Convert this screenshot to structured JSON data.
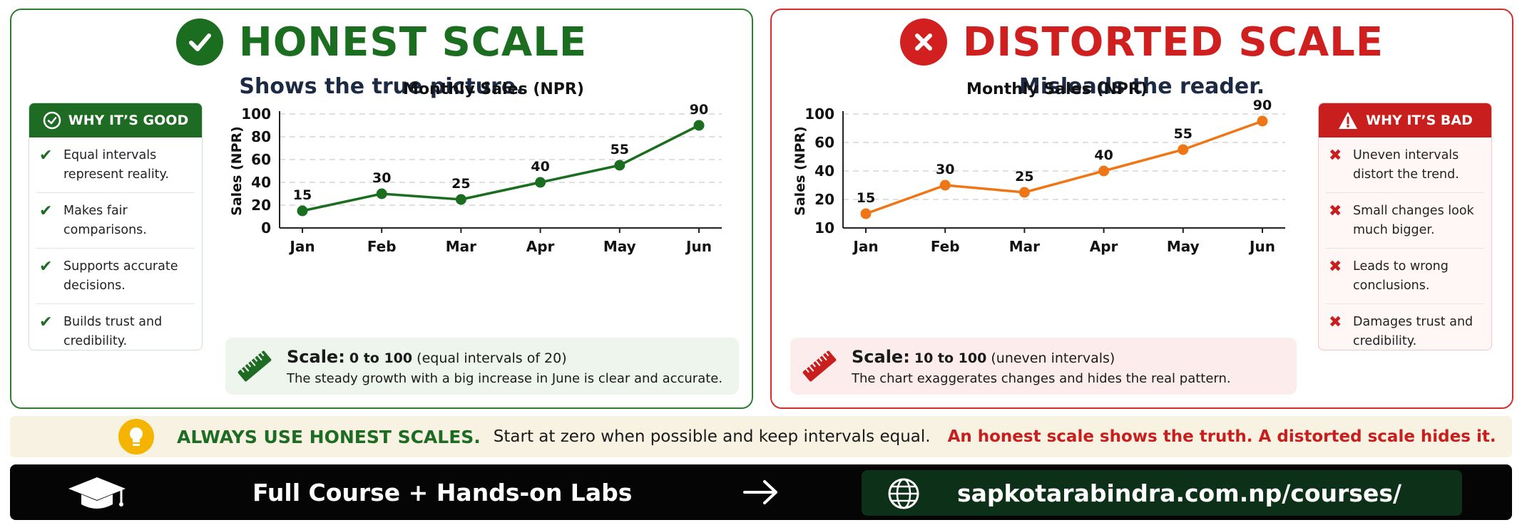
{
  "honest": {
    "title": "HONEST SCALE",
    "subtitle": "Shows the true picture.",
    "icon": "check-circle-icon",
    "accent": "#1b6e20",
    "box_title": "WHY IT’S GOOD",
    "points": [
      "Equal intervals represent reality.",
      "Makes fair comparisons.",
      "Supports accurate decisions.",
      "Builds trust and credibility."
    ],
    "note_label": "Scale:",
    "note_range": "0 to 100",
    "note_detail": "(equal intervals of 20)",
    "note_text": "The steady growth with a big increase in June is clear and accurate."
  },
  "distorted": {
    "title": "DISTORTED SCALE",
    "subtitle": "Misleads the reader.",
    "icon": "x-circle-icon",
    "accent": "#cf1f1f",
    "box_title": "WHY IT’S BAD",
    "points": [
      "Uneven intervals distort the trend.",
      "Small changes look much bigger.",
      "Leads to wrong conclusions.",
      "Damages trust and credibility."
    ],
    "note_label": "Scale:",
    "note_range": "10 to 100",
    "note_detail": "(uneven intervals)",
    "note_text": "The chart exaggerates changes and hides the real pattern."
  },
  "chart_data": [
    {
      "type": "line",
      "title": "Monthly Sales (NPR)",
      "ylabel": "Sales (NPR)",
      "xlabel": "",
      "categories": [
        "Jan",
        "Feb",
        "Mar",
        "Apr",
        "May",
        "Jun"
      ],
      "values": [
        15,
        30,
        25,
        40,
        55,
        90
      ],
      "yticks": [
        0,
        20,
        40,
        60,
        80,
        100
      ],
      "ylim": [
        0,
        100
      ],
      "scale": "linear",
      "color": "#1b6e20",
      "grid": true
    },
    {
      "type": "line",
      "title": "Monthly Sales (NPR)",
      "ylabel": "Sales (NPR)",
      "xlabel": "",
      "categories": [
        "Jan",
        "Feb",
        "Mar",
        "Apr",
        "May",
        "Jun"
      ],
      "values": [
        15,
        30,
        25,
        40,
        55,
        90
      ],
      "yticks": [
        10,
        20,
        40,
        60,
        100
      ],
      "ylim": [
        10,
        100
      ],
      "scale": "uneven",
      "color": "#ef7617",
      "grid": true
    }
  ],
  "tip": {
    "icon": "lightbulb-icon",
    "headline": "ALWAYS USE HONEST SCALES.",
    "text": "Start at zero when possible and keep intervals equal.",
    "warning": "An honest scale shows the truth.  A distorted scale hides it."
  },
  "footer": {
    "cap_icon": "graduation-cap-icon",
    "course": "Full Course + Hands-on Labs",
    "arrow_icon": "arrow-right-icon",
    "globe_icon": "globe-icon",
    "url": "sapkotarabindra.com.np/courses/"
  }
}
